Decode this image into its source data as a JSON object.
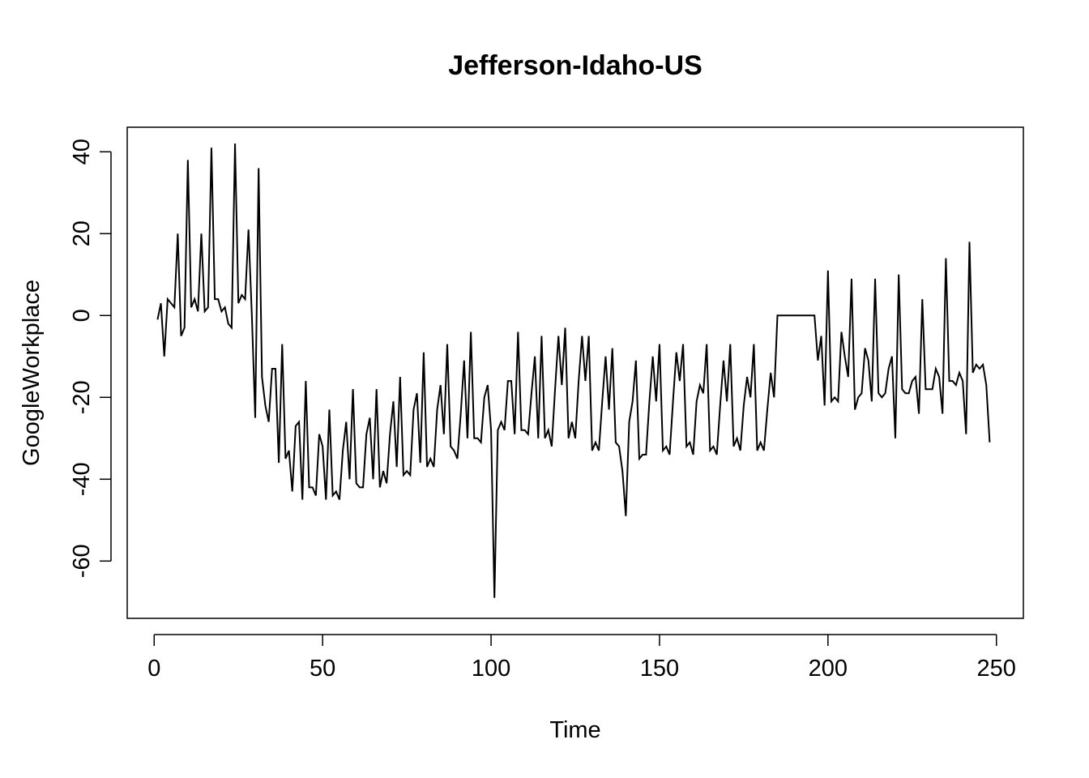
{
  "chart_data": {
    "type": "line",
    "title": "Jefferson-Idaho-US",
    "xlabel": "Time",
    "ylabel": "GoogleWorkplace",
    "xlim": [
      -8,
      258
    ],
    "ylim": [
      -74,
      46
    ],
    "x_ticks": [
      0,
      50,
      100,
      150,
      200,
      250
    ],
    "y_ticks": [
      -60,
      -40,
      -20,
      0,
      20,
      40
    ],
    "grid": false,
    "legend": "none",
    "line_color": "#000000",
    "series": [
      {
        "values": [
          -1,
          3,
          -10,
          4,
          3,
          2,
          20,
          -5,
          -3,
          38,
          2,
          4,
          1,
          20,
          1,
          2,
          41,
          4,
          4,
          1,
          2,
          -2,
          -3,
          42,
          3,
          5,
          4,
          21,
          0,
          -25,
          36,
          -15,
          -22,
          -26,
          -13,
          -13,
          -36,
          -7,
          -35,
          -33,
          -43,
          -27,
          -26,
          -45,
          -16,
          -42,
          -42,
          -44,
          -29,
          -32,
          -45,
          -23,
          -44,
          -43,
          -45,
          -33,
          -26,
          -40,
          -18,
          -41,
          -42,
          -42,
          -29,
          -25,
          -40,
          -18,
          -42,
          -38,
          -41,
          -29,
          -21,
          -37,
          -15,
          -39,
          -38,
          -39,
          -23,
          -19,
          -36,
          -9,
          -37,
          -35,
          -37,
          -23,
          -17,
          -29,
          -7,
          -32,
          -33,
          -35,
          -24,
          -11,
          -30,
          -4,
          -30,
          -30,
          -31,
          -20,
          -17,
          -28,
          -69,
          -28,
          -26,
          -28,
          -16,
          -16,
          -29,
          -4,
          -28,
          -28,
          -29,
          -19,
          -10,
          -30,
          -5,
          -30,
          -28,
          -32,
          -18,
          -5,
          -17,
          -3,
          -30,
          -26,
          -30,
          -16,
          -5,
          -16,
          -5,
          -33,
          -31,
          -33,
          -21,
          -10,
          -23,
          -8,
          -31,
          -32,
          -38,
          -49,
          -26,
          -21,
          -11,
          -35,
          -34,
          -34,
          -21,
          -10,
          -21,
          -7,
          -33,
          -32,
          -34,
          -21,
          -9,
          -16,
          -7,
          -32,
          -31,
          -34,
          -21,
          -17,
          -19,
          -7,
          -33,
          -32,
          -34,
          -22,
          -11,
          -21,
          -7,
          -32,
          -30,
          -33,
          -22,
          -15,
          -20,
          -7,
          -33,
          -31,
          -33,
          -23,
          -14,
          -20,
          0,
          0,
          0,
          0,
          0,
          0,
          0,
          0,
          0,
          0,
          0,
          0,
          -11,
          -5,
          -22,
          11,
          -21,
          -20,
          -21,
          -4,
          -10,
          -15,
          9,
          -23,
          -20,
          -19,
          -8,
          -11,
          -21,
          9,
          -19,
          -20,
          -19,
          -13,
          -10,
          -30,
          10,
          -18,
          -19,
          -19,
          -16,
          -15,
          -24,
          4,
          -18,
          -18,
          -18,
          -13,
          -15,
          -24,
          14,
          -16,
          -16,
          -17,
          -14,
          -16,
          -29,
          18,
          -14,
          -12,
          -13,
          -12,
          -17,
          -31
        ]
      }
    ]
  }
}
